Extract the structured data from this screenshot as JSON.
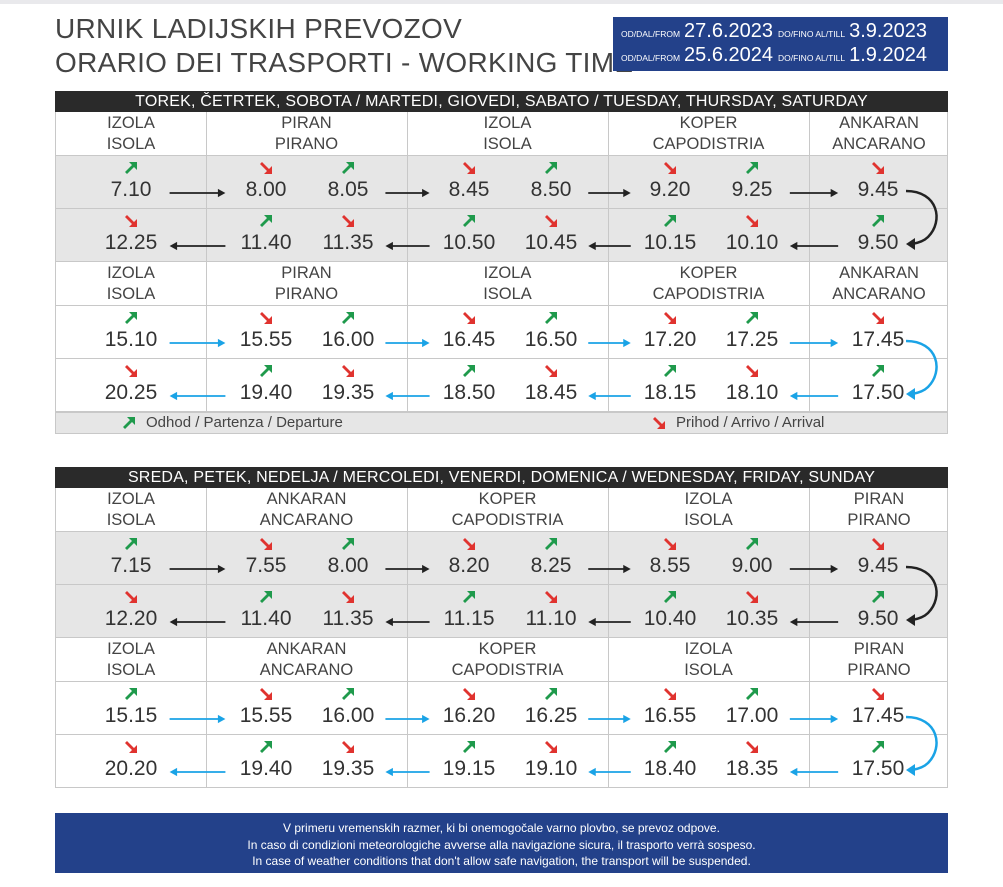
{
  "header": {
    "title_line1": "URNIK LADIJSKIH PREVOZOV",
    "title_line2": "ORARIO DEI TRASPORTI - WORKING TIME",
    "from_label": "OD/DAL/FROM",
    "till_label": "DO/FINO AL/TILL",
    "periods": [
      {
        "from": "27.6.2023",
        "till": "3.9.2023"
      },
      {
        "from": "25.6.2024",
        "till": "1.9.2024"
      }
    ]
  },
  "colors": {
    "departure_arrow": "#1f9a4c",
    "arrival_arrow": "#e0332f",
    "morning_connector": "#222222",
    "afternoon_connector": "#1aa3e6",
    "notice_bg": "#23418a"
  },
  "schedules": [
    {
      "days": "TOREK, ČETRTEK, SOBOTA / MARTEDI, GIOVEDI, SABATO / TUESDAY, THURSDAY, SATURDAY",
      "stops": [
        [
          "IZOLA",
          "ISOLA"
        ],
        [
          "PIRAN",
          "PIRANO"
        ],
        [
          "IZOLA",
          "ISOLA"
        ],
        [
          "KOPER",
          "CAPODISTRIA"
        ],
        [
          "ANKARAN",
          "ANCARANO"
        ]
      ],
      "groups": [
        {
          "connector": "black",
          "outbound": [
            {
              "time": "7.10",
              "type": "dep"
            },
            {
              "time": "8.00",
              "type": "arr"
            },
            {
              "time": "8.05",
              "type": "dep"
            },
            {
              "time": "8.45",
              "type": "arr"
            },
            {
              "time": "8.50",
              "type": "dep"
            },
            {
              "time": "9.20",
              "type": "arr"
            },
            {
              "time": "9.25",
              "type": "dep"
            },
            {
              "time": "9.45",
              "type": "arr"
            }
          ],
          "inbound": [
            {
              "time": "12.25",
              "type": "arr"
            },
            {
              "time": "11.40",
              "type": "dep"
            },
            {
              "time": "11.35",
              "type": "arr"
            },
            {
              "time": "10.50",
              "type": "dep"
            },
            {
              "time": "10.45",
              "type": "arr"
            },
            {
              "time": "10.15",
              "type": "dep"
            },
            {
              "time": "10.10",
              "type": "arr"
            },
            {
              "time": "9.50",
              "type": "dep"
            }
          ]
        },
        {
          "connector": "blue",
          "outbound": [
            {
              "time": "15.10",
              "type": "dep"
            },
            {
              "time": "15.55",
              "type": "arr"
            },
            {
              "time": "16.00",
              "type": "dep"
            },
            {
              "time": "16.45",
              "type": "arr"
            },
            {
              "time": "16.50",
              "type": "dep"
            },
            {
              "time": "17.20",
              "type": "arr"
            },
            {
              "time": "17.25",
              "type": "dep"
            },
            {
              "time": "17.45",
              "type": "arr"
            }
          ],
          "inbound": [
            {
              "time": "20.25",
              "type": "arr"
            },
            {
              "time": "19.40",
              "type": "dep"
            },
            {
              "time": "19.35",
              "type": "arr"
            },
            {
              "time": "18.50",
              "type": "dep"
            },
            {
              "time": "18.45",
              "type": "arr"
            },
            {
              "time": "18.15",
              "type": "dep"
            },
            {
              "time": "18.10",
              "type": "arr"
            },
            {
              "time": "17.50",
              "type": "dep"
            }
          ]
        }
      ]
    },
    {
      "days": "SREDA, PETEK, NEDELJA / MERCOLEDI, VENERDI, DOMENICA / WEDNESDAY, FRIDAY, SUNDAY",
      "stops": [
        [
          "IZOLA",
          "ISOLA"
        ],
        [
          "ANKARAN",
          "ANCARANO"
        ],
        [
          "KOPER",
          "CAPODISTRIA"
        ],
        [
          "IZOLA",
          "ISOLA"
        ],
        [
          "PIRAN",
          "PIRANO"
        ]
      ],
      "groups": [
        {
          "connector": "black",
          "outbound": [
            {
              "time": "7.15",
              "type": "dep"
            },
            {
              "time": "7.55",
              "type": "arr"
            },
            {
              "time": "8.00",
              "type": "dep"
            },
            {
              "time": "8.20",
              "type": "arr"
            },
            {
              "time": "8.25",
              "type": "dep"
            },
            {
              "time": "8.55",
              "type": "arr"
            },
            {
              "time": "9.00",
              "type": "dep"
            },
            {
              "time": "9.45",
              "type": "arr"
            }
          ],
          "inbound": [
            {
              "time": "12.20",
              "type": "arr"
            },
            {
              "time": "11.40",
              "type": "dep"
            },
            {
              "time": "11.35",
              "type": "arr"
            },
            {
              "time": "11.15",
              "type": "dep"
            },
            {
              "time": "11.10",
              "type": "arr"
            },
            {
              "time": "10.40",
              "type": "dep"
            },
            {
              "time": "10.35",
              "type": "arr"
            },
            {
              "time": "9.50",
              "type": "dep"
            }
          ]
        },
        {
          "connector": "blue",
          "outbound": [
            {
              "time": "15.15",
              "type": "dep"
            },
            {
              "time": "15.55",
              "type": "arr"
            },
            {
              "time": "16.00",
              "type": "dep"
            },
            {
              "time": "16.20",
              "type": "arr"
            },
            {
              "time": "16.25",
              "type": "dep"
            },
            {
              "time": "16.55",
              "type": "arr"
            },
            {
              "time": "17.00",
              "type": "dep"
            },
            {
              "time": "17.45",
              "type": "arr"
            }
          ],
          "inbound": [
            {
              "time": "20.20",
              "type": "arr"
            },
            {
              "time": "19.40",
              "type": "dep"
            },
            {
              "time": "19.35",
              "type": "arr"
            },
            {
              "time": "19.15",
              "type": "dep"
            },
            {
              "time": "19.10",
              "type": "arr"
            },
            {
              "time": "18.40",
              "type": "dep"
            },
            {
              "time": "18.35",
              "type": "arr"
            },
            {
              "time": "17.50",
              "type": "dep"
            }
          ]
        }
      ]
    }
  ],
  "legend": {
    "departure": "Odhod / Partenza / Departure",
    "arrival": "Prihod / Arrivo / Arrival"
  },
  "notice": [
    "V primeru vremenskih razmer, ki bi onemogočale varno plovbo, se prevoz odpove.",
    "In caso di condizioni meteorologiche avverse alla navigazione sicura, il trasporto verrà sospeso.",
    "In case of weather conditions that don't allow safe navigation, the transport will be suspended."
  ]
}
